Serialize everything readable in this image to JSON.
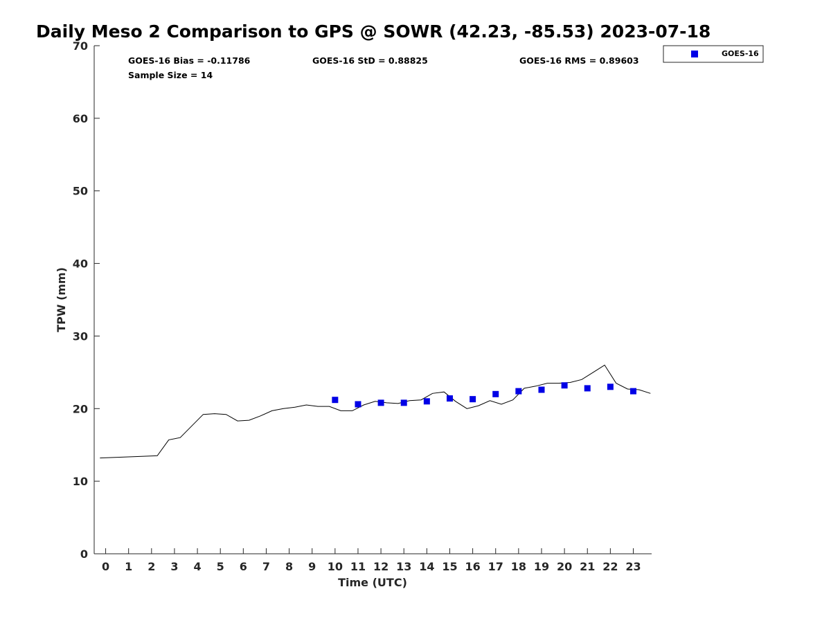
{
  "chart_data": {
    "type": "line",
    "title": "Daily Meso 2 Comparison to GPS @ SOWR (42.23, -85.53) 2023-07-18",
    "xlabel": "Time (UTC)",
    "ylabel": "TPW (mm)",
    "xlim": [
      -0.5,
      23.8
    ],
    "ylim": [
      0,
      70
    ],
    "x_ticks": [
      0,
      1,
      2,
      3,
      4,
      5,
      6,
      7,
      8,
      9,
      10,
      11,
      12,
      13,
      14,
      15,
      16,
      17,
      18,
      19,
      20,
      21,
      22,
      23
    ],
    "y_ticks": [
      0,
      10,
      20,
      30,
      40,
      50,
      60,
      70
    ],
    "stats": {
      "bias": "GOES-16 Bias = -0.11786",
      "std": "GOES-16 StD = 0.88825",
      "rms": "GOES-16 RMS = 0.89603",
      "sample": "Sample Size = 14"
    },
    "legend": {
      "position": "top-right",
      "entries": [
        "GOES-16"
      ]
    },
    "series": [
      {
        "kind": "line",
        "color": "#000000",
        "x": [
          -0.25,
          2.25,
          2.75,
          3.25,
          4.25,
          4.75,
          5.25,
          5.75,
          6.25,
          6.75,
          7.25,
          7.75,
          8.25,
          8.75,
          9.25,
          9.75,
          10.25,
          10.75,
          11.25,
          11.75,
          12.25,
          12.75,
          13.25,
          13.75,
          14.25,
          14.75,
          15.25,
          15.75,
          16.25,
          16.75,
          17.25,
          17.75,
          18.25,
          18.75,
          19.25,
          19.75,
          20.25,
          20.75,
          21.25,
          21.75,
          22.25,
          22.75,
          23.25,
          23.75
        ],
        "y": [
          13.2,
          13.5,
          15.7,
          16.0,
          19.2,
          19.3,
          19.2,
          18.3,
          18.4,
          19.0,
          19.7,
          20.0,
          20.2,
          20.5,
          20.3,
          20.3,
          19.7,
          19.7,
          20.5,
          21.0,
          20.8,
          20.7,
          21.1,
          21.2,
          22.1,
          22.3,
          21.0,
          20.0,
          20.4,
          21.1,
          20.6,
          21.2,
          22.8,
          23.1,
          23.5,
          23.5,
          23.6,
          24.0,
          25.0,
          26.0,
          23.5,
          22.7,
          22.6,
          22.1
        ]
      },
      {
        "name": "GOES-16",
        "kind": "scatter",
        "marker": "square",
        "color": "#0000e6",
        "x": [
          10,
          11,
          12,
          13,
          14,
          15,
          16,
          17,
          18,
          19,
          20,
          21,
          22,
          23
        ],
        "y": [
          21.2,
          20.6,
          20.8,
          20.8,
          21.0,
          21.4,
          21.3,
          22.0,
          22.4,
          22.6,
          23.2,
          22.8,
          23.0,
          22.4
        ]
      }
    ]
  }
}
